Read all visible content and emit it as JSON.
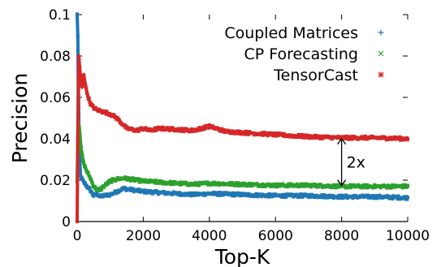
{
  "chart_data": {
    "type": "line",
    "title": "",
    "xlabel": "Top-K",
    "ylabel": "Precision",
    "xlim": [
      0,
      10000
    ],
    "ylim": [
      0,
      0.1
    ],
    "x_ticks": [
      0,
      2000,
      4000,
      6000,
      8000,
      10000
    ],
    "y_ticks": [
      0,
      0.02,
      0.04,
      0.06,
      0.08,
      0.1
    ],
    "x_tick_labels": [
      "0",
      "2000",
      "4000",
      "6000",
      "8000",
      "10000"
    ],
    "y_tick_labels": [
      "0",
      "0.02",
      "0.04",
      "0.06",
      "0.08",
      "0.1"
    ],
    "grid": false,
    "legend_position": "top-right",
    "series": [
      {
        "name": "Coupled Matrices",
        "color": "#1f77b4",
        "marker": "plus",
        "points": [
          [
            1,
            0.1
          ],
          [
            20,
            0.09
          ],
          [
            60,
            0.04
          ],
          [
            100,
            0.022
          ],
          [
            200,
            0.019
          ],
          [
            300,
            0.017
          ],
          [
            400,
            0.015
          ],
          [
            500,
            0.0125
          ],
          [
            600,
            0.0135
          ],
          [
            700,
            0.012
          ],
          [
            800,
            0.0125
          ],
          [
            1000,
            0.013
          ],
          [
            1200,
            0.0145
          ],
          [
            1400,
            0.016
          ],
          [
            1600,
            0.0155
          ],
          [
            2000,
            0.0145
          ],
          [
            2500,
            0.014
          ],
          [
            3000,
            0.0135
          ],
          [
            3500,
            0.013
          ],
          [
            4000,
            0.0135
          ],
          [
            5000,
            0.013
          ],
          [
            6000,
            0.0125
          ],
          [
            7000,
            0.0125
          ],
          [
            8000,
            0.012
          ],
          [
            9000,
            0.012
          ],
          [
            10000,
            0.0115
          ]
        ]
      },
      {
        "name": "CP Forecasting",
        "color": "#2ca02c",
        "marker": "x",
        "points": [
          [
            1,
            0.02
          ],
          [
            30,
            0.05
          ],
          [
            70,
            0.045
          ],
          [
            120,
            0.035
          ],
          [
            200,
            0.028
          ],
          [
            300,
            0.024
          ],
          [
            400,
            0.021
          ],
          [
            500,
            0.017
          ],
          [
            600,
            0.0155
          ],
          [
            700,
            0.0155
          ],
          [
            800,
            0.017
          ],
          [
            1000,
            0.0195
          ],
          [
            1200,
            0.0205
          ],
          [
            1400,
            0.021
          ],
          [
            1600,
            0.0205
          ],
          [
            2000,
            0.0195
          ],
          [
            2500,
            0.019
          ],
          [
            3000,
            0.0185
          ],
          [
            3500,
            0.018
          ],
          [
            4000,
            0.0185
          ],
          [
            5000,
            0.018
          ],
          [
            6000,
            0.0175
          ],
          [
            7000,
            0.0175
          ],
          [
            8000,
            0.017
          ],
          [
            9000,
            0.017
          ],
          [
            10000,
            0.017
          ]
        ]
      },
      {
        "name": "TensorCast",
        "color": "#d62728",
        "marker": "star",
        "points": [
          [
            1,
            0.0
          ],
          [
            20,
            0.04
          ],
          [
            50,
            0.08
          ],
          [
            100,
            0.07
          ],
          [
            150,
            0.065
          ],
          [
            200,
            0.071
          ],
          [
            250,
            0.066
          ],
          [
            300,
            0.062
          ],
          [
            400,
            0.057
          ],
          [
            500,
            0.055
          ],
          [
            600,
            0.054
          ],
          [
            800,
            0.053
          ],
          [
            1000,
            0.052
          ],
          [
            1200,
            0.05
          ],
          [
            1500,
            0.045
          ],
          [
            1800,
            0.044
          ],
          [
            2000,
            0.045
          ],
          [
            2200,
            0.044
          ],
          [
            2500,
            0.045
          ],
          [
            3000,
            0.0445
          ],
          [
            3500,
            0.044
          ],
          [
            4000,
            0.046
          ],
          [
            4500,
            0.0435
          ],
          [
            5000,
            0.043
          ],
          [
            6000,
            0.042
          ],
          [
            7000,
            0.041
          ],
          [
            8000,
            0.0405
          ],
          [
            9000,
            0.0405
          ],
          [
            10000,
            0.04
          ]
        ]
      }
    ],
    "annotations": [
      {
        "text": "2x",
        "x": 8000,
        "y_from": 0.017,
        "y_to": 0.0405
      }
    ]
  }
}
